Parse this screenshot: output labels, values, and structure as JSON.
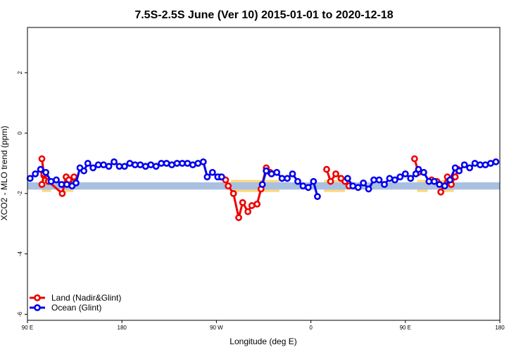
{
  "chart_data": {
    "type": "line",
    "title": "7.5S-2.5S June (Ver 10)   2015-01-01 to 2020-12-18",
    "xlabel": "Longitude (deg E)",
    "ylabel": "XCO2 - MLO trend (ppm)",
    "xlim": [
      90,
      450
    ],
    "ylim": [
      -6.2,
      3.5
    ],
    "x_ticks": [
      {
        "value": 90,
        "label": "90 E"
      },
      {
        "value": 162,
        "label": "180"
      },
      {
        "value": 234,
        "label": "90 W"
      },
      {
        "value": 306,
        "label": "0"
      },
      {
        "value": 378,
        "label": "90 E"
      },
      {
        "value": 450,
        "label": "180"
      }
    ],
    "y_ticks": [
      {
        "value": 2,
        "label": "2"
      },
      {
        "value": 0,
        "label": "0"
      },
      {
        "value": -2,
        "label": "-2"
      },
      {
        "value": -4,
        "label": "-4"
      },
      {
        "value": -6,
        "label": "-6"
      }
    ],
    "band": {
      "y_center": -1.75,
      "half_width": 0.12,
      "color": "#a9c0e0"
    },
    "land_highlight_color": "#fcd97f",
    "highlights": [
      {
        "x": [
          101,
          108
        ],
        "y": [
          -1.55,
          -1.95
        ]
      },
      {
        "x": [
          117,
          125
        ],
        "y": [
          -1.55,
          -1.95
        ]
      },
      {
        "x": [
          245,
          282
        ],
        "y": [
          -1.55,
          -1.95
        ]
      },
      {
        "x": [
          316,
          332
        ],
        "y": [
          -1.55,
          -1.95
        ]
      },
      {
        "x": [
          387,
          395
        ],
        "y": [
          -1.55,
          -1.95
        ]
      },
      {
        "x": [
          404,
          415
        ],
        "y": [
          -1.55,
          -1.95
        ]
      }
    ],
    "legend": {
      "position": "bottom-left"
    },
    "series": [
      {
        "name": "Land (Nadir&Glint)",
        "color": "#ee0000",
        "segments": [
          [
            [
              101,
              -1.7
            ],
            [
              102.5,
              -1.4
            ],
            [
              106,
              -1.6
            ],
            [
              116.5,
              -2.0
            ],
            [
              119.5,
              -1.45
            ],
            [
              122,
              -1.7
            ],
            [
              125.5,
              -1.45
            ]
          ],
          [
            [
              101,
              -0.85
            ],
            [
              102.5,
              -1.35
            ]
          ],
          [
            [
              119.5,
              -1.45
            ],
            [
              121.5,
              -1.55
            ]
          ],
          [
            [
              237,
              -1.45
            ],
            [
              241,
              -1.55
            ],
            [
              243,
              -1.75
            ],
            [
              247,
              -2.0
            ],
            [
              251,
              -2.8
            ],
            [
              254,
              -2.3
            ],
            [
              258,
              -2.6
            ],
            [
              261,
              -2.4
            ],
            [
              265,
              -2.35
            ],
            [
              268,
              -1.85
            ],
            [
              272,
              -1.15
            ],
            [
              275,
              -1.3
            ]
          ],
          [
            [
              318,
              -1.2
            ],
            [
              321,
              -1.6
            ],
            [
              325,
              -1.35
            ],
            [
              329,
              -1.5
            ],
            [
              332,
              -1.6
            ],
            [
              335,
              -1.75
            ]
          ],
          [
            [
              385,
              -0.85
            ],
            [
              388,
              -1.3
            ]
          ],
          [
            [
              398,
              -1.55
            ],
            [
              402,
              -1.6
            ]
          ],
          [
            [
              405,
              -1.95
            ],
            [
              410,
              -1.45
            ],
            [
              413,
              -1.7
            ],
            [
              416,
              -1.45
            ],
            [
              418,
              -1.2
            ]
          ]
        ]
      },
      {
        "name": "Ocean (Glint)",
        "color": "#0000ee",
        "segments": [
          [
            [
              92,
              -1.5
            ],
            [
              96,
              -1.35
            ],
            [
              100,
              -1.2
            ],
            [
              104,
              -1.3
            ],
            [
              108,
              -1.6
            ],
            [
              112,
              -1.55
            ],
            [
              116,
              -1.7
            ],
            [
              120,
              -1.7
            ],
            [
              124,
              -1.75
            ],
            [
              127,
              -1.65
            ],
            [
              130,
              -1.15
            ],
            [
              133,
              -1.25
            ],
            [
              136,
              -1.0
            ],
            [
              140,
              -1.15
            ],
            [
              144,
              -1.05
            ],
            [
              148,
              -1.05
            ],
            [
              152,
              -1.1
            ],
            [
              156,
              -0.95
            ],
            [
              160,
              -1.1
            ],
            [
              164,
              -1.1
            ],
            [
              168,
              -1.0
            ],
            [
              172,
              -1.05
            ],
            [
              176,
              -1.05
            ],
            [
              180,
              -1.1
            ],
            [
              184,
              -1.05
            ],
            [
              188,
              -1.1
            ],
            [
              192,
              -1.0
            ],
            [
              196,
              -1.0
            ],
            [
              200,
              -1.05
            ],
            [
              204,
              -1.0
            ],
            [
              208,
              -1.0
            ],
            [
              212,
              -1.0
            ],
            [
              216,
              -1.05
            ],
            [
              220,
              -1.0
            ],
            [
              224,
              -0.95
            ],
            [
              227,
              -1.45
            ],
            [
              231,
              -1.3
            ],
            [
              235,
              -1.45
            ],
            [
              238,
              -1.45
            ]
          ],
          [
            [
              269,
              -1.7
            ],
            [
              272,
              -1.25
            ],
            [
              276,
              -1.35
            ],
            [
              280,
              -1.3
            ],
            [
              284,
              -1.5
            ],
            [
              288,
              -1.5
            ],
            [
              292,
              -1.35
            ],
            [
              296,
              -1.6
            ],
            [
              300,
              -1.75
            ],
            [
              304,
              -1.8
            ],
            [
              308,
              -1.6
            ],
            [
              311,
              -2.1
            ]
          ],
          [
            [
              334,
              -1.5
            ],
            [
              338,
              -1.75
            ],
            [
              342,
              -1.8
            ],
            [
              346,
              -1.65
            ],
            [
              350,
              -1.85
            ],
            [
              354,
              -1.55
            ],
            [
              358,
              -1.55
            ],
            [
              362,
              -1.7
            ],
            [
              366,
              -1.5
            ],
            [
              370,
              -1.55
            ],
            [
              374,
              -1.45
            ],
            [
              378,
              -1.35
            ],
            [
              382,
              -1.5
            ],
            [
              386,
              -1.35
            ],
            [
              388,
              -1.2
            ],
            [
              392,
              -1.3
            ],
            [
              396,
              -1.6
            ],
            [
              400,
              -1.6
            ],
            [
              404,
              -1.7
            ],
            [
              408,
              -1.75
            ],
            [
              412,
              -1.55
            ],
            [
              416,
              -1.15
            ],
            [
              419,
              -1.25
            ],
            [
              423,
              -1.05
            ],
            [
              427,
              -1.15
            ],
            [
              431,
              -1.0
            ],
            [
              435,
              -1.05
            ],
            [
              439,
              -1.05
            ],
            [
              443,
              -1.0
            ],
            [
              447,
              -0.95
            ]
          ]
        ]
      }
    ]
  }
}
